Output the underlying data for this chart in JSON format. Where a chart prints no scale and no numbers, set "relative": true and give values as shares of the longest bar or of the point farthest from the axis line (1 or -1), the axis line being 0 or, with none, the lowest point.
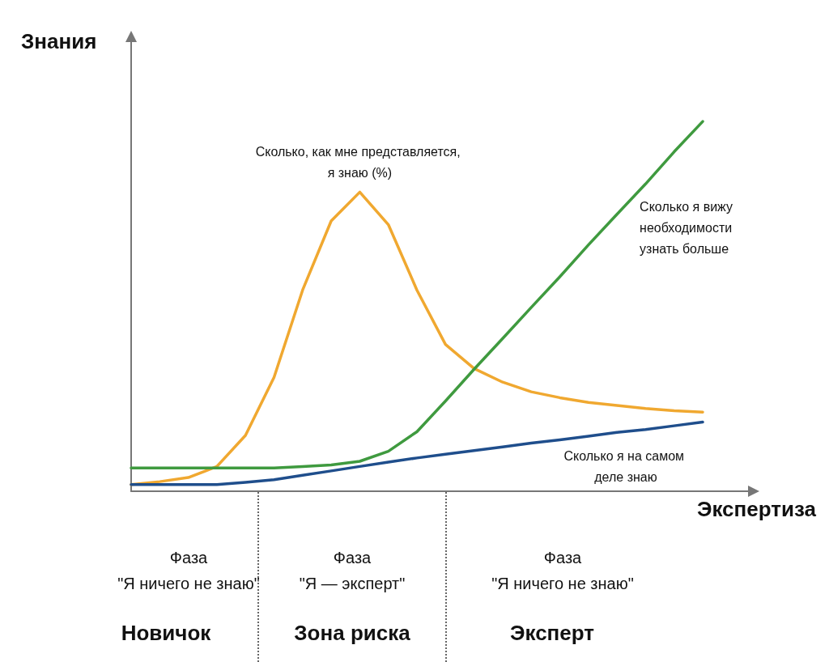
{
  "chart_data": {
    "type": "line",
    "relative": true,
    "xlabel": "Экспертиза",
    "ylabel": "Знания",
    "categories": [
      null,
      null,
      null,
      null,
      null,
      null,
      null,
      null,
      null,
      null,
      null,
      null,
      null,
      null,
      null,
      null,
      null,
      null,
      null,
      null,
      null
    ],
    "grid": false,
    "legend": false,
    "marker": "none",
    "line_style": "solid",
    "series": [
      {
        "name": "Сколько, как мне представляется, я знаю (%)",
        "color": "#f0a830",
        "values": [
          0.018,
          0.026,
          0.037,
          0.067,
          0.151,
          0.308,
          0.544,
          0.731,
          0.809,
          0.721,
          0.544,
          0.397,
          0.332,
          0.295,
          0.269,
          0.253,
          0.24,
          0.232,
          0.224,
          0.218,
          0.214
        ]
      },
      {
        "name": "Сколько я вижу необходимости узнать больше",
        "color": "#3f9a3f",
        "values": [
          0.063,
          0.063,
          0.063,
          0.063,
          0.063,
          0.063,
          0.067,
          0.071,
          0.081,
          0.108,
          0.161,
          0.244,
          0.33,
          0.413,
          0.497,
          0.58,
          0.666,
          0.749,
          0.831,
          0.918,
          1
        ]
      },
      {
        "name": "Сколько я на самом деле знаю",
        "color": "#1f4e8c",
        "values": [
          0.018,
          0.018,
          0.018,
          0.018,
          0.024,
          0.031,
          0.043,
          0.055,
          0.067,
          0.079,
          0.09,
          0.1,
          0.11,
          0.12,
          0.13,
          0.139,
          0.149,
          0.159,
          0.167,
          0.177,
          0.187
        ]
      }
    ],
    "annotations": [
      "Фаза\n\"Я ничего не знаю\"",
      "Новичок",
      "Фаза\n\"Я — эксперт\"",
      "Зона риска",
      "Фаза\n\"Я ничего не знаю\"",
      "Эксперт"
    ]
  }
}
